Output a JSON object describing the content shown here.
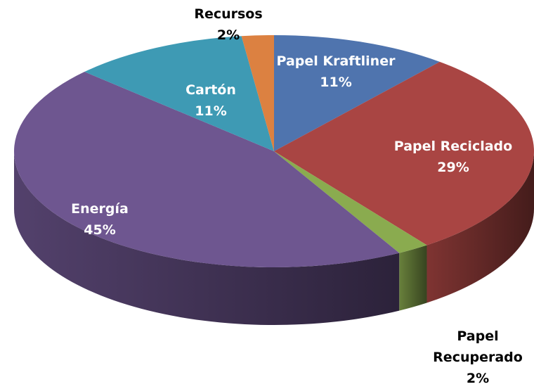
{
  "chart_data": {
    "type": "pie3d",
    "categories": [
      "Papel Kraftliner",
      "Papel Reciclado",
      "Papel Recuperado",
      "Energía",
      "Cartón",
      "Recursos"
    ],
    "values": [
      11,
      29,
      2,
      45,
      11,
      2
    ],
    "value_labels": [
      "11%",
      "29%",
      "2%",
      "45%",
      "11%",
      "2%"
    ],
    "colors": [
      "#4f74ae",
      "#a94543",
      "#8aab4f",
      "#6e5690",
      "#3e9ab4",
      "#dc8141"
    ]
  }
}
